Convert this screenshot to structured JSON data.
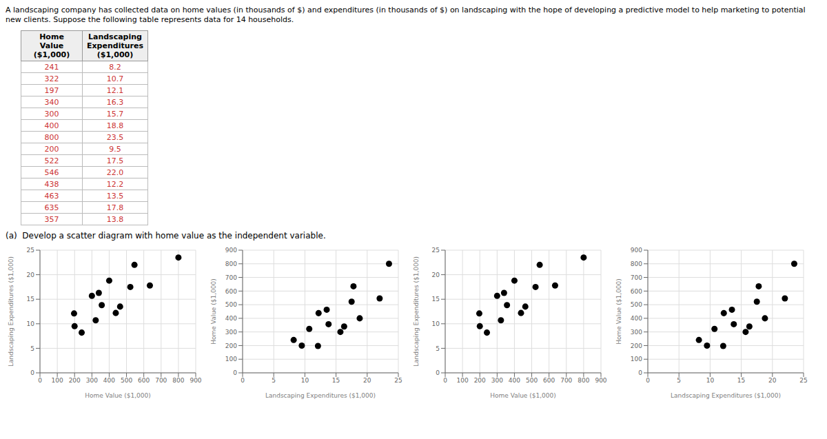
{
  "chart_data": [
    {
      "type": "table",
      "title": "A landscaping company has collected data on home values (in thousands of $) and expenditures (in thousands of $) on landscaping with the hope of developing a predictive model to help marketing to potential new clients. Suppose the following table represents data for 14 households.",
      "annotations": [
        "(a)  Develop a scatter diagram with home value as the independent variable."
      ],
      "series": [
        {
          "name": "Home Value ($1,000)",
          "color": "#cc3333",
          "values": [
            241,
            322,
            197,
            340,
            300,
            400,
            800,
            200,
            522,
            546,
            438,
            463,
            635,
            357
          ]
        },
        {
          "name": "Landscaping Expenditures ($1,000)",
          "color": "#cc3333",
          "values": [
            8.2,
            10.7,
            12.1,
            16.3,
            15.7,
            18.8,
            23.5,
            9.5,
            17.5,
            22.0,
            12.2,
            13.5,
            17.8,
            13.8
          ],
          "value_labels": [
            "8.2",
            "10.7",
            "12.1",
            "16.3",
            "15.7",
            "18.8",
            "23.5",
            "9.5",
            "17.5",
            "22.0",
            "12.2",
            "13.5",
            "17.8",
            "13.8"
          ]
        }
      ]
    },
    {
      "type": "scatter",
      "xlabel": "Home Value ($1,000)",
      "ylabel": "Landscaping Expenditures ($1,000)",
      "x": [
        241,
        322,
        197,
        340,
        300,
        400,
        800,
        200,
        522,
        546,
        438,
        463,
        635,
        357
      ],
      "values": [
        8.2,
        10.7,
        12.1,
        16.3,
        15.7,
        18.8,
        23.5,
        9.5,
        17.5,
        22.0,
        12.2,
        13.5,
        17.8,
        13.8
      ],
      "color": "#000000",
      "xlim": [
        0,
        900
      ],
      "ylim": [
        0,
        25
      ],
      "xticks": [
        0,
        100,
        200,
        300,
        400,
        500,
        600,
        700,
        800,
        900
      ],
      "yticks": [
        0,
        5,
        10,
        15,
        20,
        25
      ],
      "grid": true
    },
    {
      "type": "scatter",
      "xlabel": "Landscaping Expenditures ($1,000)",
      "ylabel": "Home Value ($1,000)",
      "x": [
        8.2,
        10.7,
        12.1,
        16.3,
        15.7,
        18.8,
        23.5,
        9.5,
        17.5,
        22.0,
        12.2,
        13.5,
        17.8,
        13.8
      ],
      "values": [
        241,
        322,
        197,
        340,
        300,
        400,
        800,
        200,
        522,
        546,
        438,
        463,
        635,
        357
      ],
      "color": "#000000",
      "xlim": [
        0,
        25
      ],
      "ylim": [
        0,
        900
      ],
      "xticks": [
        0,
        5,
        10,
        15,
        20,
        25
      ],
      "yticks": [
        0,
        100,
        200,
        300,
        400,
        500,
        600,
        700,
        800,
        900
      ],
      "grid": true
    },
    {
      "type": "scatter",
      "xlabel": "Home Value ($1,000)",
      "ylabel": "Landscaping Expenditures ($1,000)",
      "x": [
        241,
        322,
        197,
        340,
        300,
        400,
        800,
        200,
        522,
        546,
        438,
        463,
        635,
        357
      ],
      "values": [
        8.2,
        10.7,
        12.1,
        16.3,
        15.7,
        18.8,
        23.5,
        9.5,
        17.5,
        22.0,
        12.2,
        13.5,
        17.8,
        13.8
      ],
      "color": "#000000",
      "xlim": [
        0,
        900
      ],
      "ylim": [
        0,
        25
      ],
      "xticks": [
        0,
        100,
        200,
        300,
        400,
        500,
        600,
        700,
        800,
        900
      ],
      "yticks": [
        0,
        5,
        10,
        15,
        20,
        25
      ],
      "grid": true
    },
    {
      "type": "scatter",
      "xlabel": "Landscaping Expenditures ($1,000)",
      "ylabel": "Home Value ($1,000)",
      "x": [
        8.2,
        10.7,
        12.1,
        16.3,
        15.7,
        18.8,
        23.5,
        9.5,
        17.5,
        22.0,
        12.2,
        13.5,
        17.8,
        13.8
      ],
      "values": [
        241,
        322,
        197,
        340,
        300,
        400,
        800,
        200,
        522,
        546,
        438,
        463,
        635,
        357
      ],
      "color": "#000000",
      "xlim": [
        0,
        25
      ],
      "ylim": [
        0,
        900
      ],
      "xticks": [
        0,
        5,
        10,
        15,
        20,
        25
      ],
      "yticks": [
        0,
        100,
        200,
        300,
        400,
        500,
        600,
        700,
        800,
        900
      ],
      "grid": true
    }
  ]
}
